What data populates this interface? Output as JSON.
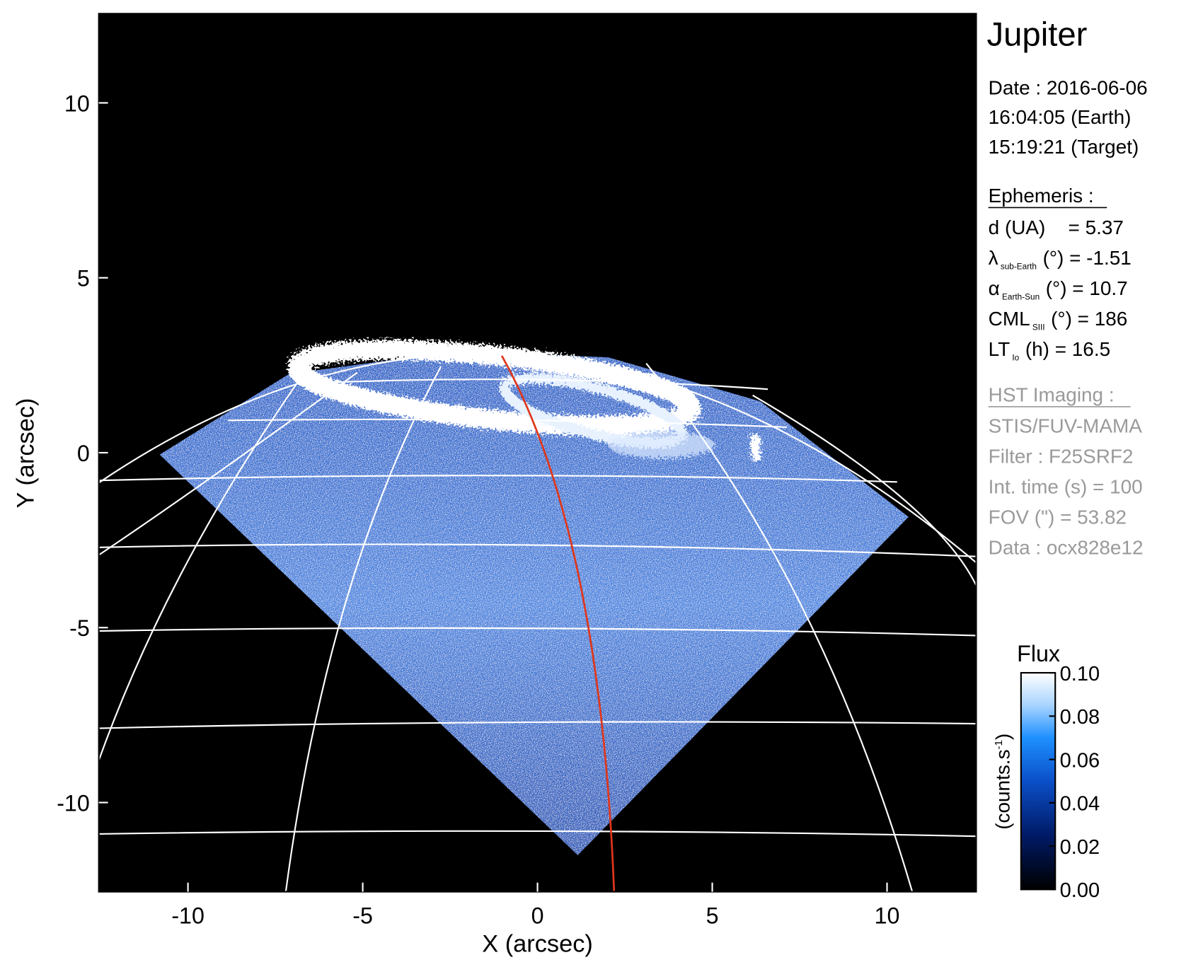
{
  "chart_data": {
    "type": "image",
    "title": "Jupiter",
    "x_label": "X (arcsec)",
    "y_label": "Y (arcsec)",
    "xlim": [
      -12.55,
      12.55
    ],
    "ylim": [
      -12.55,
      12.55
    ],
    "xticks": [
      -10,
      -5,
      0,
      5,
      10
    ],
    "yticks": [
      -10,
      -5,
      0,
      5,
      10
    ],
    "date_lines": [
      "Date : 2016-06-06",
      "16:04:05 (Earth)",
      "15:19:21 (Target)"
    ],
    "ephemeris": {
      "heading": "Ephemeris :",
      "rows": [
        {
          "main": "d (UA)",
          "rest": "= 5.37"
        },
        {
          "main": "λ",
          "sub": "sub-Earth",
          "rest": "(°) = -1.51"
        },
        {
          "main": "α",
          "sub": "Earth-Sun",
          "rest": "(°) = 10.7"
        },
        {
          "main": "CML",
          "sub": "SIII",
          "rest": "(°) = 186"
        },
        {
          "main": "LT",
          "sub": "Io",
          "rest": "(h) = 16.5"
        }
      ]
    },
    "imaging": {
      "heading": "HST Imaging :",
      "lines": [
        "STIS/FUV-MAMA",
        "Filter : F25SRF2",
        "Int. time (s) = 100",
        "FOV (\") = 53.82",
        "Data : ocx828e12"
      ]
    },
    "colorbar": {
      "title": "Flux",
      "label": {
        "text": "(counts.s",
        "sup": "-1",
        "end": ")"
      },
      "lim": [
        0,
        0.1
      ],
      "ticks": [
        {
          "value": 0,
          "label": "0.00"
        },
        {
          "value": 0.02,
          "label": "0.02"
        },
        {
          "value": 0.04,
          "label": "0.04"
        },
        {
          "value": 0.06,
          "label": "0.06"
        },
        {
          "value": 0.08,
          "label": "0.08"
        },
        {
          "value": 0.1,
          "label": "0.10"
        }
      ]
    }
  }
}
